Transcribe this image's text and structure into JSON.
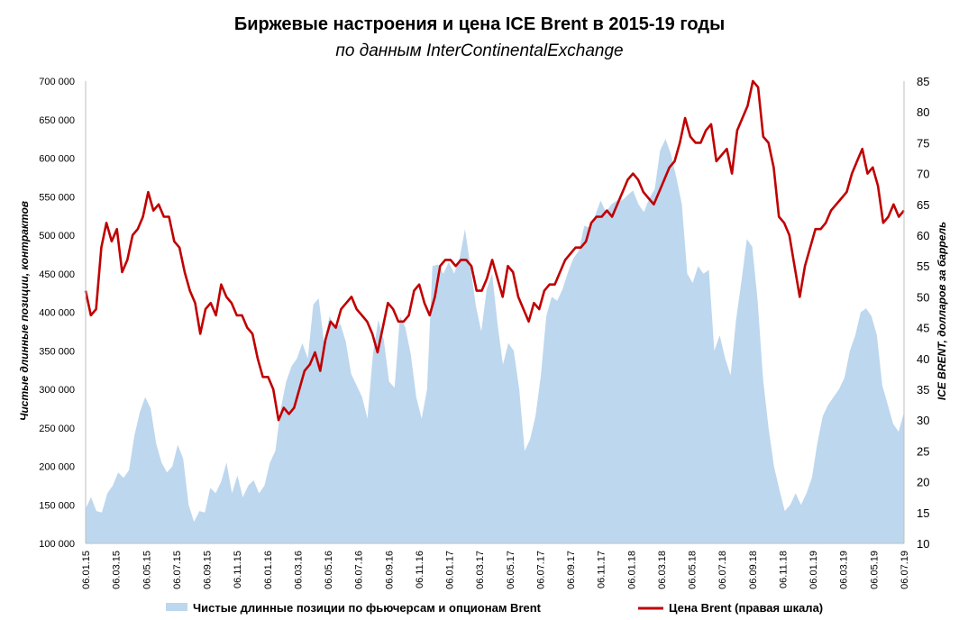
{
  "chart_data": {
    "type": "area+line",
    "title": "Биржевые настроения и цена ICE Brent в 2015-19 годы",
    "subtitle": "по данным InterContinentalExchange",
    "ylabel_left": "Чистые длинные позиции, контрактов",
    "ylabel_right": "ICE BRENT, долларов за баррель",
    "ylim_left": [
      100000,
      700000
    ],
    "ylim_right": [
      10,
      85
    ],
    "yticks_left": [
      "100 000",
      "150 000",
      "200 000",
      "250 000",
      "300 000",
      "350 000",
      "400 000",
      "450 000",
      "500 000",
      "550 000",
      "600 000",
      "650 000",
      "700 000"
    ],
    "yticks_right": [
      "10",
      "15",
      "20",
      "25",
      "30",
      "35",
      "40",
      "45",
      "50",
      "55",
      "60",
      "65",
      "70",
      "75",
      "80",
      "85"
    ],
    "x_ticks": [
      "06.01.15",
      "06.03.15",
      "06.05.15",
      "06.07.15",
      "06.09.15",
      "06.11.15",
      "06.01.16",
      "06.03.16",
      "06.05.16",
      "06.07.16",
      "06.09.16",
      "06.11.16",
      "06.01.17",
      "06.03.17",
      "06.05.17",
      "06.07.17",
      "06.09.17",
      "06.11.17",
      "06.01.18",
      "06.03.18",
      "06.05.18",
      "06.07.18",
      "06.09.18",
      "06.11.18",
      "06.01.19",
      "06.03.19",
      "06.05.19",
      "06.07.19"
    ],
    "series": [
      {
        "name": "Чистые длинные позиции по фьючерсам и опционам Brent",
        "kind": "area",
        "color": "#bdd7ee",
        "points": [
          [
            0,
            145000
          ],
          [
            1,
            160000
          ],
          [
            2,
            142000
          ],
          [
            3,
            140000
          ],
          [
            4,
            165000
          ],
          [
            5,
            175000
          ],
          [
            6,
            192000
          ],
          [
            7,
            185000
          ],
          [
            8,
            195000
          ],
          [
            9,
            240000
          ],
          [
            10,
            270000
          ],
          [
            11,
            290000
          ],
          [
            12,
            275000
          ],
          [
            13,
            230000
          ],
          [
            14,
            205000
          ],
          [
            15,
            192000
          ],
          [
            16,
            200000
          ],
          [
            17,
            228000
          ],
          [
            18,
            210000
          ],
          [
            19,
            150000
          ],
          [
            20,
            128000
          ],
          [
            21,
            142000
          ],
          [
            22,
            140000
          ],
          [
            23,
            172000
          ],
          [
            24,
            165000
          ],
          [
            25,
            180000
          ],
          [
            26,
            205000
          ],
          [
            27,
            165000
          ],
          [
            28,
            188000
          ],
          [
            29,
            160000
          ],
          [
            30,
            175000
          ],
          [
            31,
            182000
          ],
          [
            32,
            165000
          ],
          [
            33,
            175000
          ],
          [
            34,
            205000
          ],
          [
            35,
            220000
          ],
          [
            36,
            275000
          ],
          [
            37,
            310000
          ],
          [
            38,
            330000
          ],
          [
            39,
            340000
          ],
          [
            40,
            360000
          ],
          [
            41,
            340000
          ],
          [
            42,
            410000
          ],
          [
            43,
            418000
          ],
          [
            44,
            360000
          ],
          [
            45,
            395000
          ],
          [
            46,
            380000
          ],
          [
            47,
            385000
          ],
          [
            48,
            362000
          ],
          [
            49,
            320000
          ],
          [
            50,
            305000
          ],
          [
            51,
            290000
          ],
          [
            52,
            262000
          ],
          [
            53,
            345000
          ],
          [
            54,
            390000
          ],
          [
            55,
            365000
          ],
          [
            56,
            310000
          ],
          [
            57,
            302000
          ],
          [
            58,
            395000
          ],
          [
            59,
            380000
          ],
          [
            60,
            345000
          ],
          [
            61,
            290000
          ],
          [
            62,
            262000
          ],
          [
            63,
            300000
          ],
          [
            64,
            460000
          ],
          [
            65,
            462000
          ],
          [
            66,
            450000
          ],
          [
            67,
            465000
          ],
          [
            68,
            450000
          ],
          [
            69,
            470000
          ],
          [
            70,
            508000
          ],
          [
            71,
            460000
          ],
          [
            72,
            408000
          ],
          [
            73,
            375000
          ],
          [
            74,
            430000
          ],
          [
            75,
            450000
          ],
          [
            76,
            385000
          ],
          [
            77,
            332000
          ],
          [
            78,
            360000
          ],
          [
            79,
            350000
          ],
          [
            80,
            300000
          ],
          [
            81,
            220000
          ],
          [
            82,
            235000
          ],
          [
            83,
            265000
          ],
          [
            84,
            318000
          ],
          [
            85,
            395000
          ],
          [
            86,
            420000
          ],
          [
            87,
            415000
          ],
          [
            88,
            430000
          ],
          [
            89,
            452000
          ],
          [
            90,
            470000
          ],
          [
            91,
            480000
          ],
          [
            92,
            512000
          ],
          [
            93,
            510000
          ],
          [
            94,
            525000
          ],
          [
            95,
            545000
          ],
          [
            96,
            530000
          ],
          [
            97,
            540000
          ],
          [
            98,
            545000
          ],
          [
            99,
            545000
          ],
          [
            100,
            552000
          ],
          [
            101,
            558000
          ],
          [
            102,
            540000
          ],
          [
            103,
            530000
          ],
          [
            104,
            548000
          ],
          [
            105,
            560000
          ],
          [
            106,
            610000
          ],
          [
            107,
            625000
          ],
          [
            108,
            605000
          ],
          [
            109,
            575000
          ],
          [
            110,
            540000
          ],
          [
            111,
            450000
          ],
          [
            112,
            438000
          ],
          [
            113,
            460000
          ],
          [
            114,
            450000
          ],
          [
            115,
            455000
          ],
          [
            116,
            350000
          ],
          [
            117,
            370000
          ],
          [
            118,
            340000
          ],
          [
            119,
            318000
          ],
          [
            120,
            390000
          ],
          [
            121,
            440000
          ],
          [
            122,
            495000
          ],
          [
            123,
            485000
          ],
          [
            124,
            415000
          ],
          [
            125,
            312000
          ],
          [
            126,
            250000
          ],
          [
            127,
            200000
          ],
          [
            128,
            170000
          ],
          [
            129,
            142000
          ],
          [
            130,
            150000
          ],
          [
            131,
            165000
          ],
          [
            132,
            150000
          ],
          [
            133,
            165000
          ],
          [
            134,
            185000
          ],
          [
            135,
            230000
          ],
          [
            136,
            265000
          ],
          [
            137,
            280000
          ],
          [
            138,
            290000
          ],
          [
            139,
            300000
          ],
          [
            140,
            315000
          ],
          [
            141,
            350000
          ],
          [
            142,
            370000
          ],
          [
            143,
            400000
          ],
          [
            144,
            405000
          ],
          [
            145,
            395000
          ],
          [
            146,
            370000
          ],
          [
            147,
            305000
          ],
          [
            148,
            280000
          ],
          [
            149,
            255000
          ],
          [
            150,
            245000
          ],
          [
            151,
            270000
          ]
        ]
      },
      {
        "name": "Цена Brent (правая шкала)",
        "kind": "line",
        "color": "#c00000",
        "points": [
          [
            0,
            51
          ],
          [
            1,
            47
          ],
          [
            2,
            48
          ],
          [
            3,
            58
          ],
          [
            4,
            62
          ],
          [
            5,
            59
          ],
          [
            6,
            61
          ],
          [
            7,
            54
          ],
          [
            8,
            56
          ],
          [
            9,
            60
          ],
          [
            10,
            61
          ],
          [
            11,
            63
          ],
          [
            12,
            67
          ],
          [
            13,
            64
          ],
          [
            14,
            65
          ],
          [
            15,
            63
          ],
          [
            16,
            63
          ],
          [
            17,
            59
          ],
          [
            18,
            58
          ],
          [
            19,
            54
          ],
          [
            20,
            51
          ],
          [
            21,
            49
          ],
          [
            22,
            44
          ],
          [
            23,
            48
          ],
          [
            24,
            49
          ],
          [
            25,
            47
          ],
          [
            26,
            52
          ],
          [
            27,
            50
          ],
          [
            28,
            49
          ],
          [
            29,
            47
          ],
          [
            30,
            47
          ],
          [
            31,
            45
          ],
          [
            32,
            44
          ],
          [
            33,
            40
          ],
          [
            34,
            37
          ],
          [
            35,
            37
          ],
          [
            36,
            35
          ],
          [
            37,
            30
          ],
          [
            38,
            32
          ],
          [
            39,
            31
          ],
          [
            40,
            32
          ],
          [
            41,
            35
          ],
          [
            42,
            38
          ],
          [
            43,
            39
          ],
          [
            44,
            41
          ],
          [
            45,
            38
          ],
          [
            46,
            43
          ],
          [
            47,
            46
          ],
          [
            48,
            45
          ],
          [
            49,
            48
          ],
          [
            50,
            49
          ],
          [
            51,
            50
          ],
          [
            52,
            48
          ],
          [
            53,
            47
          ],
          [
            54,
            46
          ],
          [
            55,
            44
          ],
          [
            56,
            41
          ],
          [
            57,
            45
          ],
          [
            58,
            49
          ],
          [
            59,
            48
          ],
          [
            60,
            46
          ],
          [
            61,
            46
          ],
          [
            62,
            47
          ],
          [
            63,
            51
          ],
          [
            64,
            52
          ],
          [
            65,
            49
          ],
          [
            66,
            47
          ],
          [
            67,
            50
          ],
          [
            68,
            55
          ],
          [
            69,
            56
          ],
          [
            70,
            56
          ],
          [
            71,
            55
          ],
          [
            72,
            56
          ],
          [
            73,
            56
          ],
          [
            74,
            55
          ],
          [
            75,
            51
          ],
          [
            76,
            51
          ],
          [
            77,
            53
          ],
          [
            78,
            56
          ],
          [
            79,
            53
          ],
          [
            80,
            50
          ],
          [
            81,
            55
          ],
          [
            82,
            54
          ],
          [
            83,
            50
          ],
          [
            84,
            48
          ],
          [
            85,
            46
          ],
          [
            86,
            49
          ],
          [
            87,
            48
          ],
          [
            88,
            51
          ],
          [
            89,
            52
          ],
          [
            90,
            52
          ],
          [
            91,
            54
          ],
          [
            92,
            56
          ],
          [
            93,
            57
          ],
          [
            94,
            58
          ],
          [
            95,
            58
          ],
          [
            96,
            59
          ],
          [
            97,
            62
          ],
          [
            98,
            63
          ],
          [
            99,
            63
          ],
          [
            100,
            64
          ],
          [
            101,
            63
          ],
          [
            102,
            65
          ],
          [
            103,
            67
          ],
          [
            104,
            69
          ],
          [
            105,
            70
          ],
          [
            106,
            69
          ],
          [
            107,
            67
          ],
          [
            108,
            66
          ],
          [
            109,
            65
          ],
          [
            110,
            67
          ],
          [
            111,
            69
          ],
          [
            112,
            71
          ],
          [
            113,
            72
          ],
          [
            114,
            75
          ],
          [
            115,
            79
          ],
          [
            116,
            76
          ],
          [
            117,
            75
          ],
          [
            118,
            75
          ],
          [
            119,
            77
          ],
          [
            120,
            78
          ],
          [
            121,
            72
          ],
          [
            122,
            73
          ],
          [
            123,
            74
          ],
          [
            124,
            70
          ],
          [
            125,
            77
          ],
          [
            126,
            79
          ],
          [
            127,
            81
          ],
          [
            128,
            85
          ],
          [
            129,
            84
          ],
          [
            130,
            76
          ],
          [
            131,
            75
          ],
          [
            132,
            71
          ],
          [
            133,
            63
          ],
          [
            134,
            62
          ],
          [
            135,
            60
          ],
          [
            136,
            55
          ],
          [
            137,
            50
          ],
          [
            138,
            55
          ],
          [
            139,
            58
          ],
          [
            140,
            61
          ],
          [
            141,
            61
          ],
          [
            142,
            62
          ],
          [
            143,
            64
          ],
          [
            144,
            65
          ],
          [
            145,
            66
          ],
          [
            146,
            67
          ],
          [
            147,
            70
          ],
          [
            148,
            72
          ],
          [
            149,
            74
          ],
          [
            150,
            70
          ],
          [
            151,
            71
          ],
          [
            152,
            68
          ],
          [
            153,
            62
          ],
          [
            154,
            63
          ],
          [
            155,
            65
          ],
          [
            156,
            63
          ],
          [
            157,
            64
          ]
        ]
      }
    ],
    "legend_position": "bottom"
  }
}
